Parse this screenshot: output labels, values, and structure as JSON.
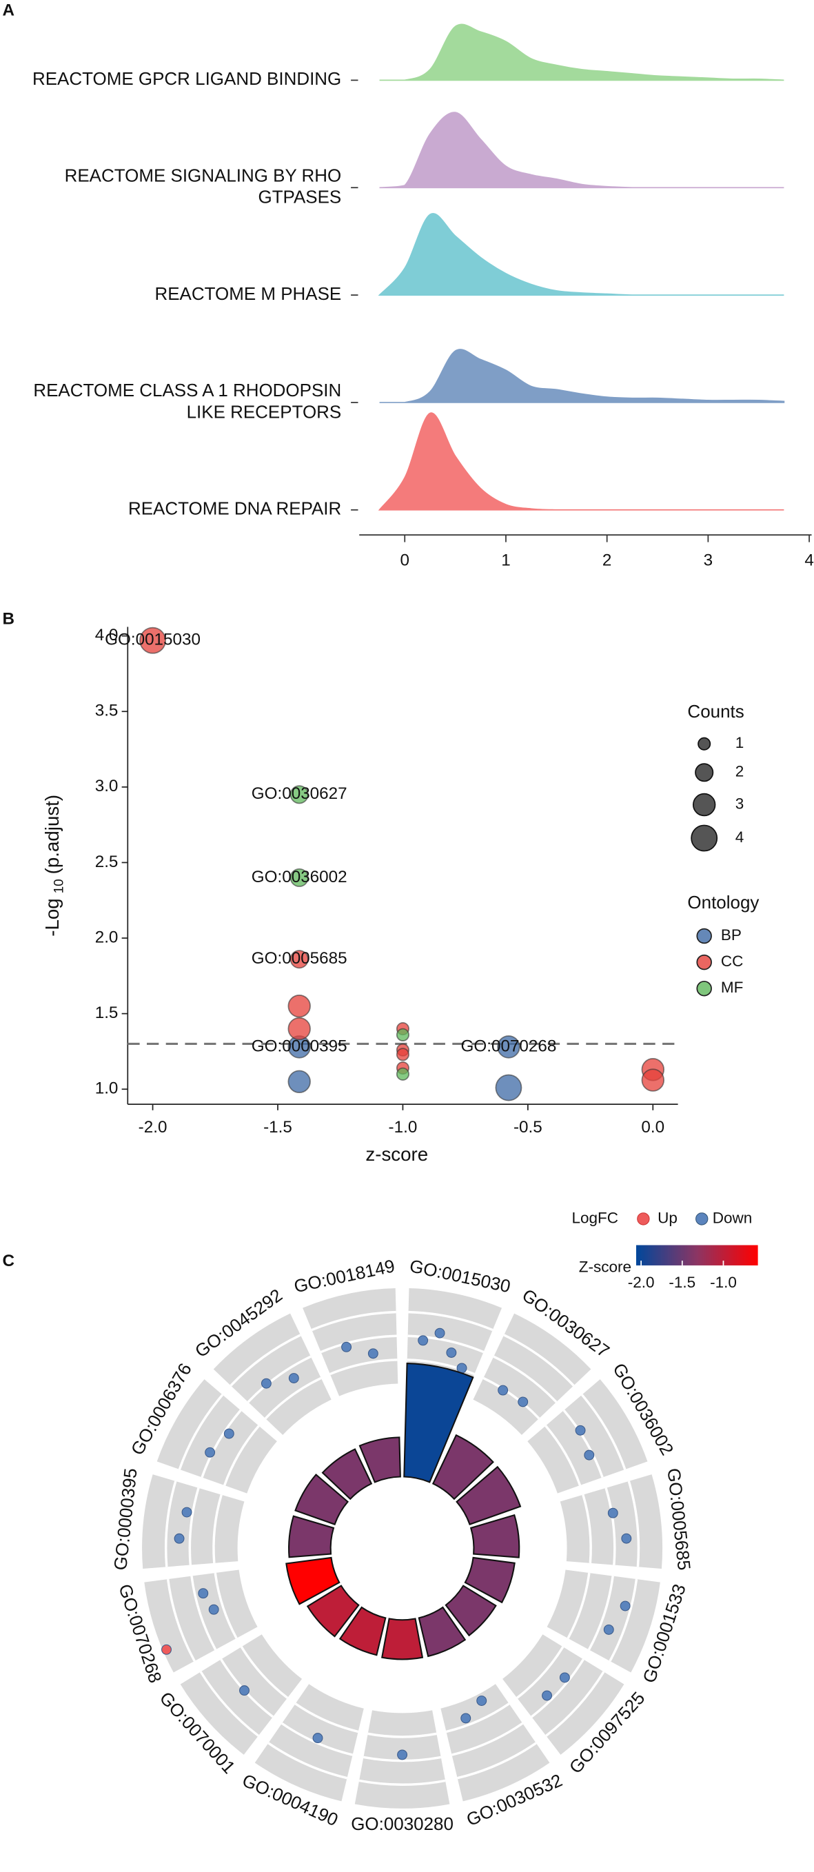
{
  "chart_data": [
    {
      "type": "ridge",
      "panel": "A",
      "categories": [
        [
          "REACTOME GPCR LIGAND BINDING"
        ],
        [
          "REACTOME SIGNALING BY RHO",
          "GTPASES"
        ],
        [
          "REACTOME M PHASE"
        ],
        [
          "REACTOME CLASS A 1 RHODOPSIN",
          "LIKE RECEPTORS"
        ],
        [
          "REACTOME DNA REPAIR"
        ]
      ],
      "x": [
        -0.25,
        0,
        0.25,
        0.5,
        0.75,
        1,
        1.25,
        1.5,
        1.75,
        2,
        2.25,
        2.5,
        2.75,
        3,
        3.25,
        3.5,
        3.75
      ],
      "series": [
        {
          "color": "#a3da9c",
          "values": [
            0,
            0,
            0.1,
            0.5,
            0.45,
            0.36,
            0.2,
            0.14,
            0.1,
            0.08,
            0.06,
            0.04,
            0.03,
            0.02,
            0.01,
            0.01,
            0
          ]
        },
        {
          "color": "#c9aad1",
          "values": [
            0,
            0.02,
            0.5,
            0.7,
            0.45,
            0.2,
            0.12,
            0.08,
            0.03,
            0.01,
            0,
            0,
            0,
            0,
            0,
            0,
            0
          ]
        },
        {
          "color": "#7fcdd6",
          "values": [
            0,
            0.25,
            0.75,
            0.55,
            0.35,
            0.2,
            0.1,
            0.04,
            0.02,
            0.01,
            0,
            0,
            0,
            0,
            0,
            0,
            0
          ]
        },
        {
          "color": "#7f9ec6",
          "values": [
            0,
            0,
            0.1,
            0.48,
            0.4,
            0.3,
            0.15,
            0.12,
            0.08,
            0.05,
            0.04,
            0.04,
            0.03,
            0.02,
            0.02,
            0.02,
            0.01
          ]
        },
        {
          "color": "#f47b7b",
          "values": [
            0,
            0.3,
            0.9,
            0.5,
            0.2,
            0.05,
            0.01,
            0,
            0,
            0,
            0,
            0,
            0,
            0,
            0,
            0,
            0
          ]
        }
      ],
      "xlim": [
        -0.45,
        4.0
      ],
      "xticks": [
        0,
        1,
        2,
        3,
        4
      ]
    },
    {
      "type": "bubble",
      "panel": "B",
      "x_label": "z-score",
      "y_label": [
        "-Log",
        "10",
        "(p.adjust)"
      ],
      "series": [
        {
          "name": "BP",
          "color": "#3e6aa6",
          "x": [
            -1.414,
            -1.414,
            -0.577,
            -0.577
          ],
          "y": [
            1.28,
            1.05,
            1.28,
            1.01
          ],
          "sizes": [
            3,
            3,
            3,
            4
          ],
          "labels": [
            "GO:0000395",
            null,
            "GO:0070268",
            null
          ]
        },
        {
          "name": "CC",
          "color": "#e5403a",
          "x": [
            -2,
            -1.414,
            -1.414,
            -1.414,
            -1,
            -1,
            -1,
            -1,
            0,
            0
          ],
          "y": [
            3.97,
            1.86,
            1.55,
            1.4,
            1.4,
            1.26,
            1.23,
            1.14,
            1.13,
            1.06
          ],
          "sizes": [
            4,
            2,
            3,
            3,
            1,
            1,
            1,
            1,
            3,
            3
          ],
          "labels": [
            "GO:0015030",
            "GO:0005685",
            null,
            null,
            null,
            null,
            null,
            null,
            null,
            null
          ]
        },
        {
          "name": "MF",
          "color": "#5fb85b",
          "x": [
            -1.414,
            -1.414,
            -1,
            -1
          ],
          "y": [
            2.95,
            2.4,
            1.36,
            1.1
          ],
          "sizes": [
            2,
            2,
            1,
            1
          ],
          "labels": [
            "GO:0030627",
            "GO:0036002",
            null,
            null
          ]
        }
      ],
      "xlim": [
        -2.1,
        0.1
      ],
      "ylim": [
        0.9,
        4.06
      ],
      "xticks": [
        {
          "value": -2,
          "label": "-2.0"
        },
        {
          "value": -1.5,
          "label": "-1.5"
        },
        {
          "value": -1,
          "label": "-1.0"
        },
        {
          "value": -0.5,
          "label": "-0.5"
        },
        {
          "value": 0,
          "label": "0.0"
        }
      ],
      "yticks": [
        {
          "value": 1,
          "label": "1.0"
        },
        {
          "value": 1.5,
          "label": "1.5"
        },
        {
          "value": 2,
          "label": "2.0"
        },
        {
          "value": 2.5,
          "label": "2.5"
        },
        {
          "value": 3,
          "label": "3.0"
        },
        {
          "value": 3.5,
          "label": "3.5"
        },
        {
          "value": 4,
          "label": "4.0"
        }
      ],
      "hline": 1.3,
      "size_title": "Counts",
      "size_legend": [
        1,
        2,
        3,
        4
      ],
      "color_title": "Ontology"
    },
    {
      "type": "gocircle",
      "panel": "C",
      "terms": [
        "GO:0015030",
        "GO:0030627",
        "GO:0036002",
        "GO:0005685",
        "GO:0001533",
        "GO:0097525",
        "GO:0030532",
        "GO:0030280",
        "GO:0004190",
        "GO:0070001",
        "GO:0070268",
        "GO:0000395",
        "GO:0006376",
        "GO:0045292",
        "GO:0018149"
      ],
      "logfc": [
        [
          -2.3,
          -1.5,
          -2.9,
          -3.9
        ],
        [
          -4.1,
          -3.9
        ],
        [
          -1.9,
          -2.3
        ],
        [
          -1.9,
          -1.0
        ],
        [
          -0.5,
          -1.2
        ],
        [
          -2.4,
          -2.5
        ],
        [
          -5.4,
          -4.6
        ],
        [
          -2.5
        ],
        [
          -2.4
        ],
        [
          -2.0
        ],
        [
          1.7,
          -3.2,
          -2.7
        ],
        [
          -1.1,
          -1.5
        ],
        [
          -1.8,
          -2.4
        ],
        [
          -1.9,
          -2.9
        ],
        [
          -2.3,
          -3.3
        ]
      ],
      "logfc_lim": [
        -6,
        2
      ],
      "bar_heights": [
        0.95,
        0.45,
        0.45,
        0.38,
        0.35,
        0.32,
        0.33,
        0.33,
        0.32,
        0.33,
        0.38,
        0.35,
        0.35,
        0.32,
        0.33
      ],
      "bar_lim": [
        0,
        1
      ],
      "zscores": [
        -2.0,
        -1.41,
        -1.41,
        -1.41,
        -1.41,
        -1.41,
        -1.41,
        -1.0,
        -1.0,
        -1.0,
        -0.58,
        -1.41,
        -1.41,
        -1.41,
        -1.41
      ],
      "zlim": [
        -2.06,
        -0.58
      ],
      "zcolors": [
        "#00479b",
        "#8c3563",
        "#ff0000"
      ],
      "zticks": [
        {
          "value": -2,
          "label": "-2.0"
        },
        {
          "value": -1.5,
          "label": "-1.5"
        },
        {
          "value": -1,
          "label": "-1.0"
        }
      ],
      "colorbar_title": "Z-score",
      "legend": {
        "title": "LogFC",
        "up": "Up",
        "down": "Down",
        "up_color": "#ee5b5b",
        "down_color": "#5b84bd"
      }
    }
  ]
}
